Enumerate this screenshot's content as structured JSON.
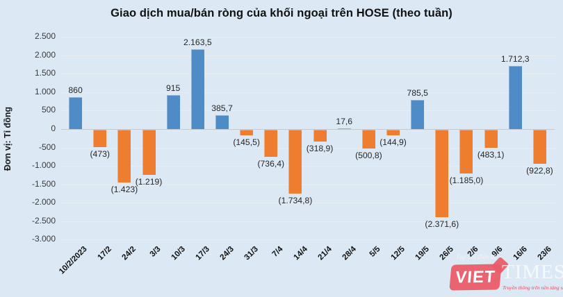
{
  "title": "Giao dịch mua/bán ròng của khối ngoại trên HOSE (theo tuần)",
  "y_axis_title": "Đơn vị: Tỉ đồng",
  "chart_data": {
    "type": "bar",
    "title": "Giao dịch mua/bán ròng của khối ngoại trên HOSE (theo tuần)",
    "xlabel": "",
    "ylabel": "Đơn vị: Tỉ đồng",
    "ylim": [
      -3000,
      2500
    ],
    "ytick_step": 500,
    "ytick_labels": [
      "2.500",
      "2.000",
      "1.500",
      "1.000",
      "500",
      "0",
      "-500",
      "-1.000",
      "-1.500",
      "-2.000",
      "-2.500",
      "-3.000"
    ],
    "grid": true,
    "legend": false,
    "categories": [
      "10/2/2023",
      "17/2",
      "24/2",
      "3/3",
      "10/3",
      "17/3",
      "24/3",
      "31/3",
      "7/4",
      "14/4",
      "21/4",
      "28/4",
      "5/5",
      "12/5",
      "19/5",
      "26/5",
      "2/6",
      "9/6",
      "16/6",
      "23/6"
    ],
    "values": [
      860,
      -473,
      -1423,
      -1219,
      915,
      2163.5,
      385.7,
      -145.5,
      -736.4,
      -1734.8,
      -318.9,
      17.6,
      -500.8,
      -144.9,
      785.5,
      -2371.6,
      -1185.0,
      -483.1,
      1712.3,
      -922.8
    ],
    "value_labels": [
      "860",
      "(473)",
      "(1.423)",
      "(1.219)",
      "915",
      "2.163,5",
      "385,7",
      "(145,5)",
      "(736,4)",
      "(1.734,8)",
      "(318,9)",
      "17,6",
      "(500,8)",
      "(144,9)",
      "785,5",
      "(2.371,6)",
      "(1.185,0)",
      "(483,1)",
      "1.712,3",
      "(922,8)"
    ],
    "colors": {
      "positive": "#4e8bc7",
      "negative": "#ee7d2f",
      "background": "#dce8f4",
      "gridline": "#e9edf0",
      "zero_line": "#c2c9d0"
    }
  },
  "watermark": {
    "faint_top": "Tạp chí điện tử",
    "viet": "VIET",
    "times": "TIMES",
    "tagline": "Truyền thông trên nền tảng số",
    "red": "#ea5c69"
  }
}
